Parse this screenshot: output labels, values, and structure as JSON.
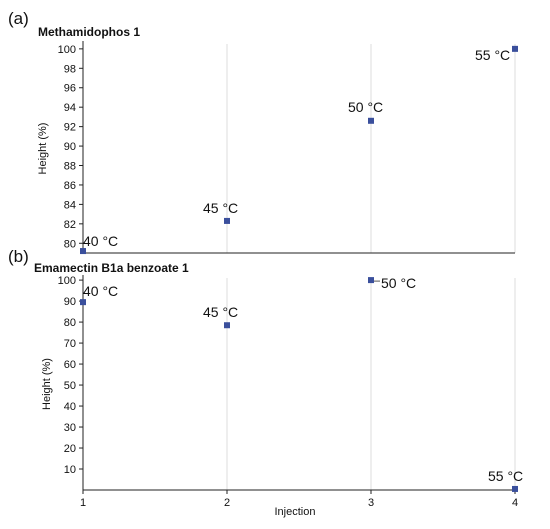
{
  "chart_data": [
    {
      "type": "scatter",
      "panel_label": "(a)",
      "title": "Methamidophos 1",
      "xlabel": "",
      "ylabel": "Height (%)",
      "ylim": [
        79,
        100.5
      ],
      "xlim": [
        1,
        4
      ],
      "yticks": [
        80,
        82,
        84,
        86,
        88,
        90,
        92,
        94,
        96,
        98,
        100
      ],
      "vertical_grid_x": [
        2,
        3,
        4
      ],
      "marker_color": "#3a4f9c",
      "points": [
        {
          "x": 1,
          "y": 79.2,
          "label": "40 °C"
        },
        {
          "x": 2,
          "y": 82.3,
          "label": "45 °C"
        },
        {
          "x": 3,
          "y": 92.6,
          "label": "50 °C"
        },
        {
          "x": 4,
          "y": 100,
          "label": "55 °C"
        }
      ]
    },
    {
      "type": "scatter",
      "panel_label": "(b)",
      "title": "Emamectin B1a benzoate 1",
      "xlabel": "Injection",
      "ylabel": "Height (%)",
      "ylim": [
        0,
        101
      ],
      "xlim": [
        1,
        4
      ],
      "yticks": [
        10,
        20,
        30,
        40,
        50,
        60,
        70,
        80,
        90,
        100
      ],
      "xticks": [
        1,
        2,
        3,
        4
      ],
      "vertical_grid_x": [
        2,
        3,
        4
      ],
      "marker_color": "#3a4f9c",
      "points": [
        {
          "x": 1,
          "y": 89.5,
          "label": "40 °C"
        },
        {
          "x": 2,
          "y": 78.5,
          "label": "45 °C"
        },
        {
          "x": 3,
          "y": 100,
          "label": "50 °C"
        },
        {
          "x": 4,
          "y": 0.5,
          "label": "55 °C"
        }
      ]
    }
  ]
}
